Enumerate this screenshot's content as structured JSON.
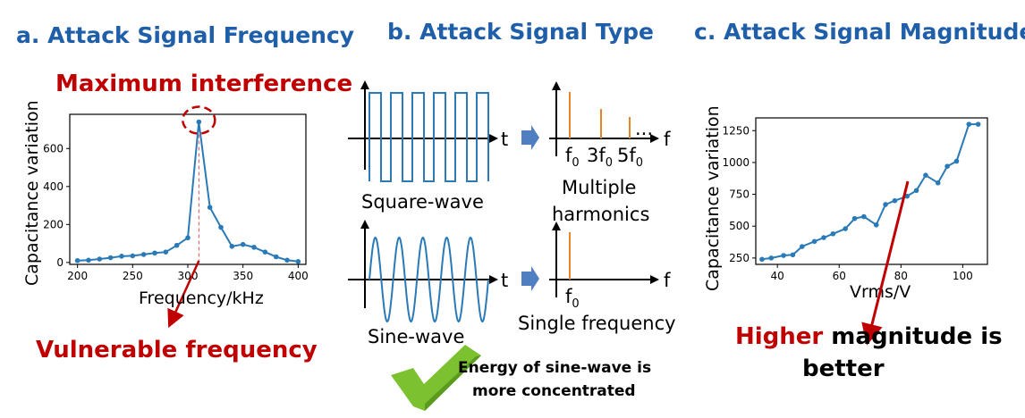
{
  "titles": {
    "a": "a. Attack Signal Frequency",
    "b": "b. Attack Signal Type",
    "c": "c. Attack Signal Magnitude"
  },
  "annotations": {
    "max_interference": "Maximum interference",
    "vulnerable_frequency": "Vulnerable frequency",
    "square_wave": "Square-wave",
    "multiple": "Multiple",
    "harmonics": "harmonics",
    "sine_wave": "Sine-wave",
    "single_frequency": "Single frequency",
    "energy_line1": "Energy of sine-wave is",
    "energy_line2": "more concentrated",
    "higher": "Higher",
    "magnitude_is": " magnitude is",
    "better": "better",
    "t": "t",
    "f": "f",
    "ellipsis": "...",
    "f0": "f",
    "f0_sub": "0",
    "f3": "3f",
    "f3_sub": "0",
    "f5": "5f",
    "f5_sub": "0"
  },
  "colors": {
    "title_blue": "#1f5ea8",
    "red": "#c00000",
    "line_blue": "#2a7ab7",
    "orange": "#e8832a",
    "check_green": "#7cc230",
    "arrow_blue": "#4f7fc0"
  },
  "chart_data": [
    {
      "id": "a",
      "type": "line",
      "xlabel": "Frequency/kHz",
      "ylabel": "Capacitance variation",
      "xlim": [
        193,
        407
      ],
      "ylim": [
        -10,
        780
      ],
      "xticks": [
        200,
        250,
        300,
        350,
        400
      ],
      "yticks": [
        0,
        200,
        400,
        600
      ],
      "x": [
        200,
        210,
        220,
        230,
        240,
        250,
        260,
        270,
        280,
        290,
        300,
        310,
        320,
        330,
        340,
        350,
        360,
        370,
        380,
        390,
        400
      ],
      "y": [
        10,
        12,
        18,
        25,
        33,
        35,
        42,
        50,
        55,
        90,
        130,
        740,
        290,
        185,
        85,
        95,
        80,
        55,
        30,
        12,
        5
      ],
      "highlight_x": 310,
      "grid": false
    },
    {
      "id": "c",
      "type": "line",
      "xlabel": "Vrms/V",
      "ylabel": "Capacitance variation",
      "xlim": [
        33,
        108
      ],
      "ylim": [
        200,
        1350
      ],
      "xticks": [
        40,
        60,
        80,
        100
      ],
      "yticks": [
        250,
        500,
        750,
        1000,
        1250
      ],
      "x": [
        35,
        38,
        42,
        45,
        48,
        52,
        55,
        58,
        62,
        65,
        68,
        72,
        75,
        78,
        82,
        85,
        88,
        92,
        95,
        98,
        102,
        105
      ],
      "y": [
        240,
        250,
        270,
        275,
        340,
        380,
        410,
        440,
        480,
        560,
        575,
        510,
        670,
        700,
        735,
        780,
        900,
        840,
        970,
        1010,
        1300,
        1300
      ],
      "grid": false
    }
  ]
}
